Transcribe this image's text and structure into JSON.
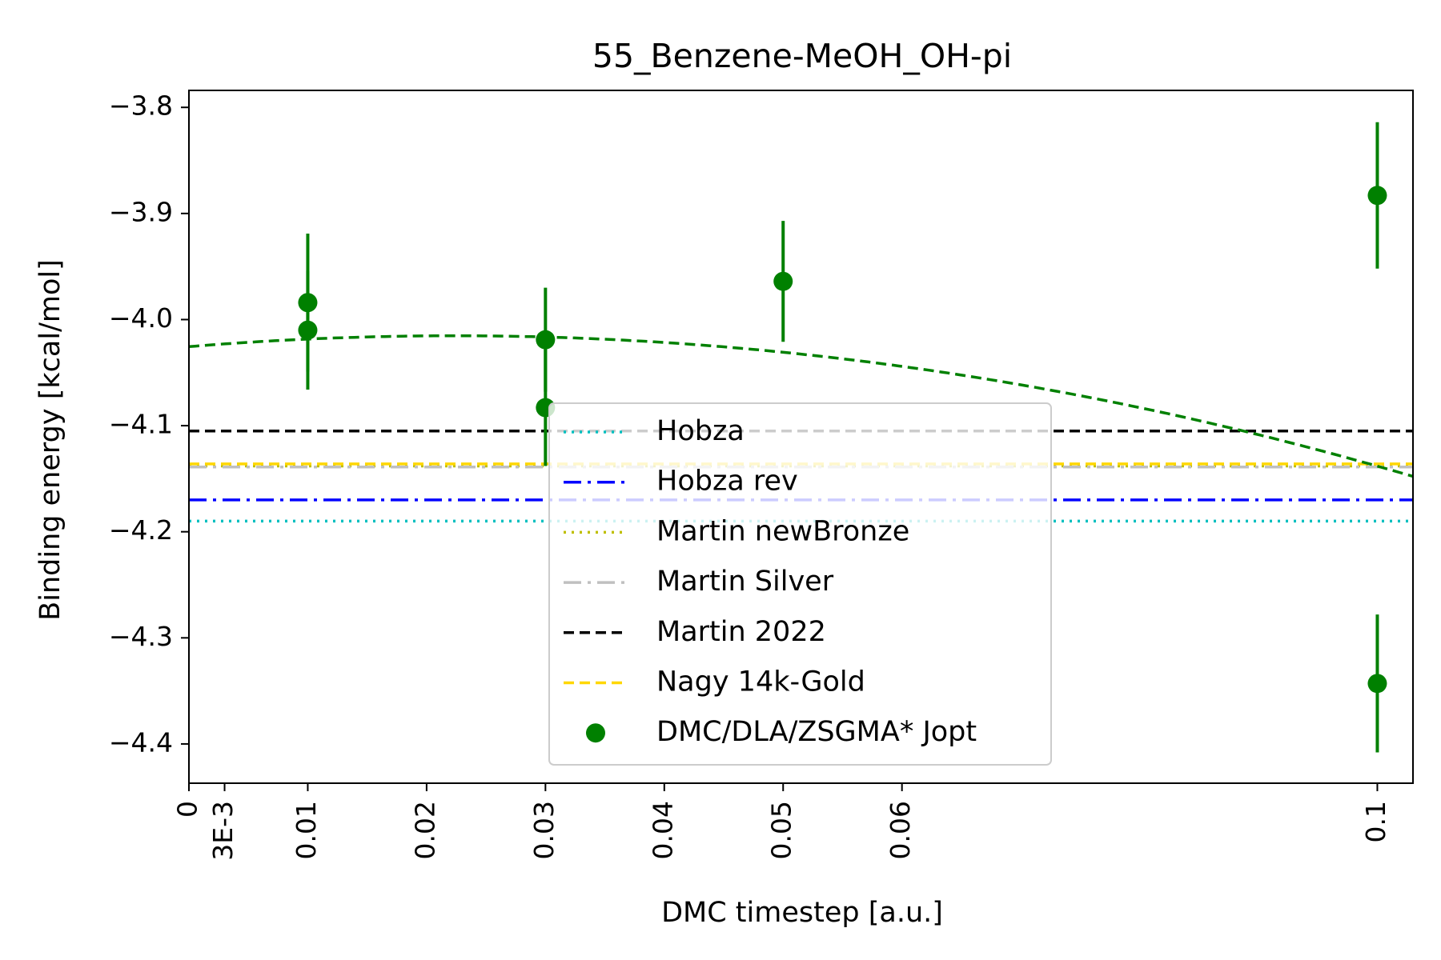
{
  "chart_data": {
    "type": "scatter",
    "title": "55_Benzene-MeOH_OH-pi",
    "xlabel": "DMC timestep [a.u.]",
    "ylabel": "Binding energy [kcal/mol]",
    "xlim": [
      0,
      0.103
    ],
    "ylim": [
      -4.437,
      -3.784
    ],
    "x_ticks": [
      {
        "value": 0,
        "label": "0"
      },
      {
        "value": 0.003,
        "label": "3E-3"
      },
      {
        "value": 0.01,
        "label": "0.01"
      },
      {
        "value": 0.02,
        "label": "0.02"
      },
      {
        "value": 0.03,
        "label": "0.03"
      },
      {
        "value": 0.04,
        "label": "0.04"
      },
      {
        "value": 0.05,
        "label": "0.05"
      },
      {
        "value": 0.06,
        "label": "0.06"
      },
      {
        "value": 0.1,
        "label": "0.1"
      }
    ],
    "y_ticks": [
      {
        "value": -3.8,
        "label": "−3.8"
      },
      {
        "value": -3.9,
        "label": "−3.9"
      },
      {
        "value": -4.0,
        "label": "−4.0"
      },
      {
        "value": -4.1,
        "label": "−4.1"
      },
      {
        "value": -4.2,
        "label": "−4.2"
      },
      {
        "value": -4.3,
        "label": "−4.3"
      },
      {
        "value": -4.4,
        "label": "−4.4"
      }
    ],
    "grid": false,
    "legend_position": "center",
    "reference_lines": [
      {
        "name": "Hobza",
        "y": -4.19,
        "color": "#00bfbf",
        "dash": "3,7"
      },
      {
        "name": "Hobza rev",
        "y": -4.17,
        "color": "#0000ff",
        "dash": "22,8,4,8"
      },
      {
        "name": "Martin newBronze",
        "y": -4.138,
        "color": "#bfbf00",
        "dash": "3,7"
      },
      {
        "name": "Martin Silver",
        "y": -4.139,
        "color": "#c0c0c0",
        "dash": "22,8,4,8"
      },
      {
        "name": "Martin 2022",
        "y": -4.105,
        "color": "#000000",
        "dash": "13,7"
      },
      {
        "name": "Nagy 14k-Gold",
        "y": -4.136,
        "color": "#ffd700",
        "dash": "13,7"
      }
    ],
    "series": [
      {
        "name": "DMC/DLA/ZSGMA* Jopt",
        "color": "#008000",
        "points": [
          {
            "x": 0.01,
            "y": -3.984,
            "err": 0.065
          },
          {
            "x": 0.01,
            "y": -4.01,
            "err": 0.056
          },
          {
            "x": 0.03,
            "y": -4.019,
            "err": 0.049
          },
          {
            "x": 0.03,
            "y": -4.083,
            "err": 0.055
          },
          {
            "x": 0.05,
            "y": -3.964,
            "err": 0.057
          },
          {
            "x": 0.1,
            "y": -3.883,
            "err": 0.069
          },
          {
            "x": 0.1,
            "y": -4.343,
            "err": 0.065
          }
        ]
      }
    ],
    "fit_curve": {
      "color": "#008000",
      "coefficients": [
        -4.0255,
        0.9135,
        -20.4
      ]
    }
  }
}
